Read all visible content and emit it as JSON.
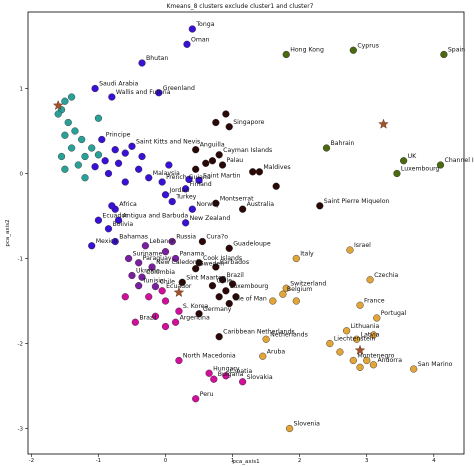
{
  "chart_data": {
    "type": "scatter",
    "title": "Kmeans_8 clusters exclude cluster1 and cluster7",
    "xlabel": "pca_axis1",
    "ylabel": "pca_axis2",
    "xlim": [
      -2.05,
      4.45
    ],
    "ylim": [
      -3.3,
      1.9
    ],
    "xticks": [
      -2,
      -1,
      0,
      1,
      2,
      3,
      4
    ],
    "yticks": [
      1,
      0,
      -1,
      -2,
      -3
    ],
    "grid": false,
    "legend": "none",
    "cluster_colors": {
      "teal": "#2aa198",
      "blue": "#3a10d6",
      "purple": "#7b1fa2",
      "magenta": "#d0109a",
      "darkred": "#2a0808",
      "orange": "#e2a53a",
      "olive": "#4b6a10",
      "center": "#a0522d"
    },
    "centroids": [
      {
        "x": 3.25,
        "y": 0.58,
        "color": "center"
      },
      {
        "x": 2.9,
        "y": -2.08,
        "color": "center"
      },
      {
        "x": -1.6,
        "y": 0.8,
        "color": "center"
      },
      {
        "x": 0.2,
        "y": -1.4,
        "color": "center"
      }
    ],
    "points": [
      {
        "x": 0.4,
        "y": 1.7,
        "label": "Tonga",
        "c": "blue"
      },
      {
        "x": 0.32,
        "y": 1.52,
        "label": "Oman",
        "c": "blue"
      },
      {
        "x": -0.35,
        "y": 1.3,
        "label": "Bhutan",
        "c": "blue"
      },
      {
        "x": -0.1,
        "y": 0.95,
        "label": "Greenland",
        "c": "blue"
      },
      {
        "x": -0.8,
        "y": 0.9,
        "label": "Wallis and Futuna",
        "c": "blue"
      },
      {
        "x": -1.05,
        "y": 1.0,
        "label": "Saudi Arabia",
        "c": "blue"
      },
      {
        "x": -1.4,
        "y": 0.9,
        "label": "",
        "c": "teal"
      },
      {
        "x": -1.5,
        "y": 0.85,
        "label": "",
        "c": "teal"
      },
      {
        "x": -1.55,
        "y": 0.75,
        "label": "",
        "c": "teal"
      },
      {
        "x": -1.6,
        "y": 0.7,
        "label": "",
        "c": "teal"
      },
      {
        "x": -1.45,
        "y": 0.6,
        "label": "",
        "c": "teal"
      },
      {
        "x": -1.35,
        "y": 0.5,
        "label": "",
        "c": "teal"
      },
      {
        "x": -1.5,
        "y": 0.45,
        "label": "",
        "c": "teal"
      },
      {
        "x": -1.25,
        "y": 0.4,
        "label": "",
        "c": "teal"
      },
      {
        "x": -1.4,
        "y": 0.3,
        "label": "",
        "c": "teal"
      },
      {
        "x": -1.2,
        "y": 0.2,
        "label": "",
        "c": "teal"
      },
      {
        "x": -1.55,
        "y": 0.2,
        "label": "",
        "c": "teal"
      },
      {
        "x": -1.3,
        "y": 0.1,
        "label": "",
        "c": "teal"
      },
      {
        "x": -1.5,
        "y": 0.05,
        "label": "",
        "c": "teal"
      },
      {
        "x": -1.1,
        "y": 0.3,
        "label": "",
        "c": "teal"
      },
      {
        "x": -1.0,
        "y": 0.65,
        "label": "",
        "c": "teal"
      },
      {
        "x": -0.95,
        "y": 0.4,
        "label": "Principe",
        "c": "blue"
      },
      {
        "x": -1.0,
        "y": 0.22,
        "label": "",
        "c": "teal"
      },
      {
        "x": -0.75,
        "y": 0.28,
        "label": "",
        "c": "blue"
      },
      {
        "x": -0.6,
        "y": 0.24,
        "label": "",
        "c": "blue"
      },
      {
        "x": -0.5,
        "y": 0.32,
        "label": "Saint Kitts and Nevis",
        "c": "blue"
      },
      {
        "x": -0.35,
        "y": 0.2,
        "label": "",
        "c": "blue"
      },
      {
        "x": -0.4,
        "y": 0.05,
        "label": "",
        "c": "blue"
      },
      {
        "x": -0.7,
        "y": 0.12,
        "label": "",
        "c": "blue"
      },
      {
        "x": -0.9,
        "y": 0.15,
        "label": "",
        "c": "blue"
      },
      {
        "x": -1.05,
        "y": 0.08,
        "label": "",
        "c": "blue"
      },
      {
        "x": -0.85,
        "y": 0.0,
        "label": "",
        "c": "blue"
      },
      {
        "x": -1.2,
        "y": -0.05,
        "label": "",
        "c": "teal"
      },
      {
        "x": -0.6,
        "y": -0.1,
        "label": "",
        "c": "blue"
      },
      {
        "x": -0.25,
        "y": -0.05,
        "label": "Malaysia",
        "c": "blue"
      },
      {
        "x": 0.05,
        "y": 0.1,
        "label": "",
        "c": "blue"
      },
      {
        "x": 0.45,
        "y": 0.28,
        "label": "Anguilla",
        "c": "darkred"
      },
      {
        "x": 0.45,
        "y": 0.05,
        "label": "",
        "c": "darkred"
      },
      {
        "x": 0.6,
        "y": 0.12,
        "label": "",
        "c": "darkred"
      },
      {
        "x": 0.7,
        "y": 0.15,
        "label": "",
        "c": "darkred"
      },
      {
        "x": 0.8,
        "y": 0.22,
        "label": "Cayman Islands",
        "c": "darkred"
      },
      {
        "x": 0.85,
        "y": 0.1,
        "label": "Palau",
        "c": "darkred"
      },
      {
        "x": 0.95,
        "y": 0.55,
        "label": "Singapore",
        "c": "darkred"
      },
      {
        "x": 0.9,
        "y": 0.7,
        "label": "",
        "c": "darkred"
      },
      {
        "x": 0.75,
        "y": 0.6,
        "label": "",
        "c": "darkred"
      },
      {
        "x": 1.3,
        "y": 0.02,
        "label": "",
        "c": "darkred"
      },
      {
        "x": 1.4,
        "y": 0.02,
        "label": "Maldives",
        "c": "darkred"
      },
      {
        "x": -0.05,
        "y": -0.1,
        "label": "French Guiana",
        "c": "blue"
      },
      {
        "x": 0.35,
        "y": -0.07,
        "label": "",
        "c": "blue"
      },
      {
        "x": 0.3,
        "y": -0.18,
        "label": "Finland",
        "c": "blue"
      },
      {
        "x": 0.5,
        "y": -0.08,
        "label": "Saint Martin",
        "c": "blue"
      },
      {
        "x": 0.0,
        "y": -0.25,
        "label": "Jordan",
        "c": "blue"
      },
      {
        "x": 0.1,
        "y": -0.33,
        "label": "Turkey",
        "c": "blue"
      },
      {
        "x": 0.75,
        "y": -0.35,
        "label": "Montserrat",
        "c": "darkred"
      },
      {
        "x": 1.15,
        "y": -0.42,
        "label": "Australia",
        "c": "darkred"
      },
      {
        "x": 0.4,
        "y": -0.42,
        "label": "Norway",
        "c": "blue"
      },
      {
        "x": 0.3,
        "y": -0.58,
        "label": "New Zealand",
        "c": "blue"
      },
      {
        "x": -0.75,
        "y": -0.42,
        "label": "Africa",
        "c": "blue"
      },
      {
        "x": -0.8,
        "y": -0.38,
        "label": "",
        "c": "blue"
      },
      {
        "x": -1.0,
        "y": -0.55,
        "label": "Ecuador",
        "c": "blue"
      },
      {
        "x": -0.7,
        "y": -0.55,
        "label": "Antigua and Barbuda",
        "c": "blue"
      },
      {
        "x": -0.85,
        "y": -0.65,
        "label": "Bolivia",
        "c": "blue"
      },
      {
        "x": -0.75,
        "y": -0.8,
        "label": "Bahamas",
        "c": "blue"
      },
      {
        "x": -1.1,
        "y": -0.85,
        "label": "Mexico",
        "c": "blue"
      },
      {
        "x": -0.3,
        "y": -0.85,
        "label": "Lebanon",
        "c": "purple"
      },
      {
        "x": 0.0,
        "y": -0.92,
        "label": "",
        "c": "purple"
      },
      {
        "x": 0.1,
        "y": -0.8,
        "label": "Russia",
        "c": "purple"
      },
      {
        "x": 0.55,
        "y": -0.8,
        "label": "Cura?o",
        "c": "darkred"
      },
      {
        "x": 0.95,
        "y": -0.88,
        "label": "Guadeloupe",
        "c": "darkred"
      },
      {
        "x": -0.55,
        "y": -1.0,
        "label": "Suriname",
        "c": "purple"
      },
      {
        "x": -0.4,
        "y": -1.05,
        "label": "Paraguay",
        "c": "purple"
      },
      {
        "x": -0.2,
        "y": -1.1,
        "label": "New Caledonia",
        "c": "purple"
      },
      {
        "x": 0.15,
        "y": -1.0,
        "label": "Panama",
        "c": "purple"
      },
      {
        "x": 0.5,
        "y": -1.05,
        "label": "Cook Islands",
        "c": "darkred"
      },
      {
        "x": 0.75,
        "y": -1.1,
        "label": "Barbados",
        "c": "darkred"
      },
      {
        "x": 0.45,
        "y": -1.12,
        "label": "Sweden",
        "c": "darkred"
      },
      {
        "x": -0.5,
        "y": -1.2,
        "label": "Ukraine",
        "c": "purple"
      },
      {
        "x": -0.35,
        "y": -1.22,
        "label": "Colombia",
        "c": "purple"
      },
      {
        "x": -0.4,
        "y": -1.32,
        "label": "Tunisia",
        "c": "purple"
      },
      {
        "x": -0.15,
        "y": -1.33,
        "label": "Chile",
        "c": "purple"
      },
      {
        "x": 0.25,
        "y": -1.28,
        "label": "Sint Maarten",
        "c": "darkred"
      },
      {
        "x": 0.85,
        "y": -1.25,
        "label": "Brazil",
        "c": "darkred"
      },
      {
        "x": 0.7,
        "y": -1.32,
        "label": "Chile",
        "c": "darkred"
      },
      {
        "x": 0.9,
        "y": -1.38,
        "label": "Luxembourg",
        "c": "darkred"
      },
      {
        "x": 0.8,
        "y": -1.45,
        "label": "",
        "c": "darkred"
      },
      {
        "x": 1.0,
        "y": -1.3,
        "label": "",
        "c": "darkred"
      },
      {
        "x": 0.95,
        "y": -1.53,
        "label": "Isle of Man",
        "c": "darkred"
      },
      {
        "x": 1.05,
        "y": -1.45,
        "label": "",
        "c": "darkred"
      },
      {
        "x": -0.05,
        "y": -1.38,
        "label": "Ecuador",
        "c": "magenta"
      },
      {
        "x": -0.25,
        "y": -1.45,
        "label": "",
        "c": "magenta"
      },
      {
        "x": -0.6,
        "y": -1.45,
        "label": "",
        "c": "magenta"
      },
      {
        "x": 0.2,
        "y": -1.62,
        "label": "S. Korea",
        "c": "magenta"
      },
      {
        "x": 0.0,
        "y": -1.5,
        "label": "",
        "c": "magenta"
      },
      {
        "x": -0.15,
        "y": -1.68,
        "label": "",
        "c": "magenta"
      },
      {
        "x": -0.45,
        "y": -1.75,
        "label": "Brazil",
        "c": "magenta"
      },
      {
        "x": 0.15,
        "y": -1.75,
        "label": "Argentina",
        "c": "magenta"
      },
      {
        "x": 0.5,
        "y": -1.65,
        "label": "Germany",
        "c": "darkred"
      },
      {
        "x": 0.0,
        "y": -1.8,
        "label": "",
        "c": "magenta"
      },
      {
        "x": 0.8,
        "y": -1.92,
        "label": "Caribbean Netherlands",
        "c": "darkred"
      },
      {
        "x": 0.2,
        "y": -2.2,
        "label": "North Macedonia",
        "c": "magenta"
      },
      {
        "x": 0.65,
        "y": -2.35,
        "label": "Hungary",
        "c": "magenta"
      },
      {
        "x": 0.9,
        "y": -2.38,
        "label": "Croatia",
        "c": "magenta"
      },
      {
        "x": 0.72,
        "y": -2.42,
        "label": "Bulgaria",
        "c": "magenta"
      },
      {
        "x": 1.15,
        "y": -2.45,
        "label": "Slovakia",
        "c": "magenta"
      },
      {
        "x": 0.45,
        "y": -2.65,
        "label": "Peru",
        "c": "magenta"
      },
      {
        "x": 1.45,
        "y": -2.15,
        "label": "Aruba",
        "c": "orange"
      },
      {
        "x": 1.95,
        "y": -1.0,
        "label": "Italy",
        "c": "orange"
      },
      {
        "x": 2.75,
        "y": -0.9,
        "label": "Israel",
        "c": "orange"
      },
      {
        "x": 3.05,
        "y": -1.25,
        "label": "Czechia",
        "c": "orange"
      },
      {
        "x": 1.8,
        "y": -1.35,
        "label": "Switzerland",
        "c": "orange"
      },
      {
        "x": 1.75,
        "y": -1.42,
        "label": "Belgium",
        "c": "orange"
      },
      {
        "x": 1.6,
        "y": -1.5,
        "label": "",
        "c": "orange"
      },
      {
        "x": 1.95,
        "y": -1.5,
        "label": "",
        "c": "orange"
      },
      {
        "x": 2.9,
        "y": -1.55,
        "label": "France",
        "c": "orange"
      },
      {
        "x": 3.15,
        "y": -1.7,
        "label": "Portugal",
        "c": "orange"
      },
      {
        "x": 1.5,
        "y": -1.95,
        "label": "Netherlands",
        "c": "orange"
      },
      {
        "x": 2.7,
        "y": -1.85,
        "label": "Lithuania",
        "c": "orange"
      },
      {
        "x": 2.45,
        "y": -2.0,
        "label": "Liechtenstein",
        "c": "orange"
      },
      {
        "x": 2.85,
        "y": -1.95,
        "label": "Latvia",
        "c": "orange"
      },
      {
        "x": 3.1,
        "y": -1.9,
        "label": "",
        "c": "orange"
      },
      {
        "x": 2.6,
        "y": -2.1,
        "label": "",
        "c": "orange"
      },
      {
        "x": 2.8,
        "y": -2.2,
        "label": "Montenegro",
        "c": "orange"
      },
      {
        "x": 3.0,
        "y": -2.2,
        "label": "",
        "c": "orange"
      },
      {
        "x": 3.1,
        "y": -2.25,
        "label": "Andorra",
        "c": "orange"
      },
      {
        "x": 2.9,
        "y": -2.28,
        "label": "",
        "c": "orange"
      },
      {
        "x": 3.7,
        "y": -2.3,
        "label": "San Marino",
        "c": "orange"
      },
      {
        "x": 1.85,
        "y": -3.0,
        "label": "Slovenia",
        "c": "orange"
      },
      {
        "x": 1.8,
        "y": 1.4,
        "label": "Hong Kong",
        "c": "olive"
      },
      {
        "x": 2.8,
        "y": 1.45,
        "label": "Cyprus",
        "c": "olive"
      },
      {
        "x": 4.15,
        "y": 1.4,
        "label": "Spain",
        "c": "olive"
      },
      {
        "x": 2.4,
        "y": 0.3,
        "label": "Bahrain",
        "c": "olive"
      },
      {
        "x": 3.55,
        "y": 0.15,
        "label": "UK",
        "c": "olive"
      },
      {
        "x": 3.45,
        "y": 0.0,
        "label": "Luxembourg",
        "c": "olive"
      },
      {
        "x": 4.1,
        "y": 0.1,
        "label": "Channel Islands",
        "c": "olive"
      },
      {
        "x": 1.65,
        "y": -0.15,
        "label": "",
        "c": "darkred"
      },
      {
        "x": 2.3,
        "y": -0.38,
        "label": "Saint Pierre Miquelon",
        "c": "darkred"
      }
    ]
  }
}
